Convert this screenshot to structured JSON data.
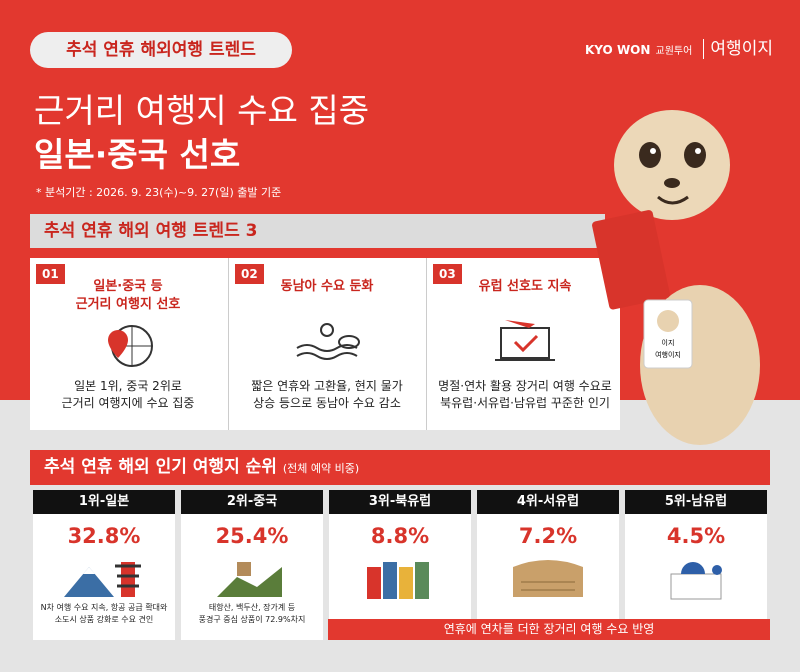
{
  "header": {
    "badge": "추석 연휴 해외여행 트렌드",
    "logo_brand": "KYO WON",
    "logo_sub": "교원투어",
    "logo_name": "여행이지",
    "title_lines": [
      "근거리 여행지 수요 집중",
      "일본·중국 선호"
    ],
    "note": "* 분석기간 : 2026. 9. 23(수)~9. 27(일) 출발 기준"
  },
  "trends": {
    "title": "추석 연휴 해외 여행 트렌드 3",
    "items": [
      {
        "number": "01",
        "title_lines": [
          "일본·중국 등",
          "근거리 여행지 선호"
        ],
        "desc_lines": [
          "일본 1위, 중국 2위로",
          "근거리 여행지에 수요 집중"
        ]
      },
      {
        "number": "02",
        "title_lines": [
          "동남아 수요 둔화"
        ],
        "desc_lines": [
          "짧은 연휴와 고환율, 현지 물가",
          "상승 등으로 동남아 수요 감소"
        ]
      },
      {
        "number": "03",
        "title_lines": [
          "유럽 선호도 지속"
        ],
        "desc_lines": [
          "명절·연차 활용 장거리 여행 수요로",
          "북유럽·서유럽·남유럽 꾸준한 인기"
        ]
      }
    ]
  },
  "ranking": {
    "title": "추석 연휴 해외 인기 여행지 순위",
    "subtitle": "(전체 예약 비중)",
    "items": [
      {
        "label": "1위-일본",
        "value": "32.8%",
        "note_lines": [
          "N차 여행 수요 지속, 항공 공급 확대와",
          "소도시 상품 강화로 수요 견인"
        ]
      },
      {
        "label": "2위-중국",
        "value": "25.4%",
        "note_lines": [
          "태항산, 백두산, 장가계 등",
          "풍경구 중심 상품이 72.9%차지"
        ]
      },
      {
        "label": "3위-북유럽",
        "value": "8.8%"
      },
      {
        "label": "4위-서유럽",
        "value": "7.2%"
      },
      {
        "label": "5위-남유럽",
        "value": "4.5%"
      }
    ],
    "shared_note": "연휴에 연차를 더한 장거리 여행 수요 반영"
  },
  "mascot": {
    "badge_name": "이지",
    "badge_brand": "여행이지"
  }
}
